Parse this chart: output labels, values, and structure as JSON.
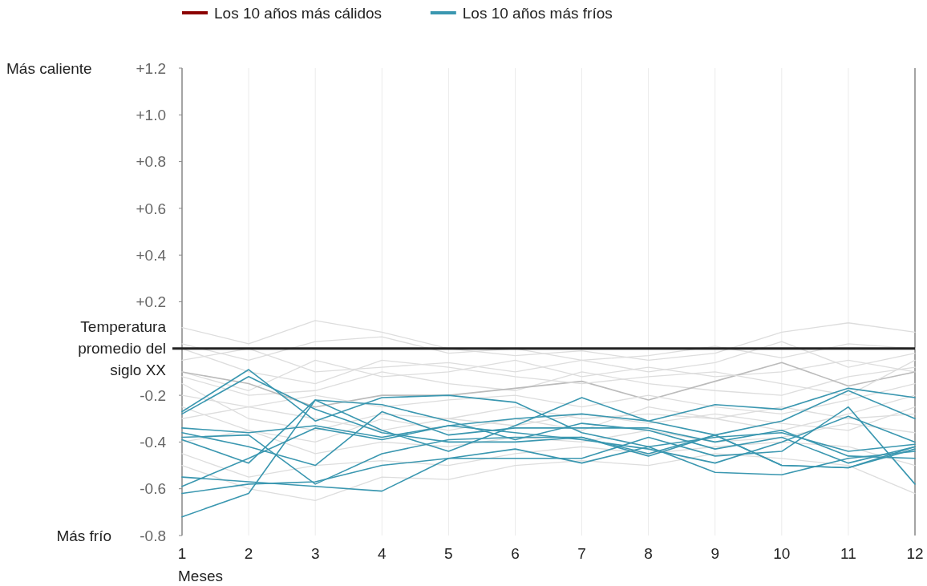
{
  "chart_data": {
    "type": "line",
    "xlabel": "Meses",
    "x": [
      1,
      2,
      3,
      4,
      5,
      6,
      7,
      8,
      9,
      10,
      11,
      12
    ],
    "xlim": [
      1,
      12
    ],
    "xticks": [
      1,
      2,
      3,
      4,
      5,
      6,
      7,
      8,
      9,
      10,
      11,
      12
    ],
    "ylim": [
      -0.8,
      1.2
    ],
    "yticks": [
      {
        "value": -0.8,
        "label": "-0.8"
      },
      {
        "value": -0.6,
        "label": "-0.6"
      },
      {
        "value": -0.4,
        "label": "-0.4"
      },
      {
        "value": -0.2,
        "label": "-0.2"
      },
      {
        "value": 0,
        "label": null
      },
      {
        "value": 0.2,
        "label": "+0.2"
      },
      {
        "value": 0.4,
        "label": "+0.4"
      },
      {
        "value": 0.6,
        "label": "+0.6"
      },
      {
        "value": 0.8,
        "label": "+0.8"
      },
      {
        "value": 1.0,
        "label": "+1.0"
      },
      {
        "value": 1.2,
        "label": "+1.2"
      }
    ],
    "grid": "x",
    "legend": "top",
    "marker": "none",
    "line_style": "solid",
    "ref_lines": [
      {
        "axis": "y",
        "value": 0,
        "label": "Temperatura promedio del siglo XX",
        "color": "#222222"
      }
    ],
    "annotations": [
      "Más caliente",
      "Más frío"
    ],
    "series": [
      {
        "color": "#dddddd",
        "values": [
          0.09,
          0.02,
          0.12,
          0.07,
          0.0,
          -0.03,
          -0.01,
          -0.05,
          -0.02,
          0.07,
          0.11,
          0.07
        ]
      },
      {
        "color": "#dddddd",
        "values": [
          0.02,
          -0.05,
          0.03,
          0.05,
          -0.02,
          0.0,
          -0.05,
          -0.03,
          0.01,
          -0.04,
          0.02,
          0.0
        ]
      },
      {
        "color": "#dddddd",
        "values": [
          -0.05,
          0.0,
          -0.1,
          -0.08,
          -0.06,
          -0.1,
          -0.05,
          -0.1,
          -0.06,
          0.03,
          -0.08,
          -0.02
        ]
      },
      {
        "color": "#dddddd",
        "values": [
          -0.1,
          -0.18,
          -0.05,
          -0.12,
          -0.1,
          -0.05,
          -0.12,
          -0.08,
          -0.12,
          -0.1,
          -0.05,
          -0.1
        ]
      },
      {
        "color": "#dddddd",
        "values": [
          -0.12,
          -0.2,
          -0.18,
          -0.1,
          -0.15,
          -0.18,
          -0.1,
          -0.15,
          -0.18,
          -0.2,
          -0.12,
          -0.08
        ]
      },
      {
        "color": "#bbbbbb",
        "values": [
          -0.1,
          -0.15,
          -0.25,
          -0.2,
          -0.2,
          -0.17,
          -0.14,
          -0.22,
          -0.14,
          -0.06,
          -0.16,
          -0.1
        ]
      },
      {
        "color": "#dddddd",
        "values": [
          -0.2,
          -0.25,
          -0.2,
          -0.25,
          -0.22,
          -0.2,
          -0.25,
          -0.2,
          -0.25,
          -0.28,
          -0.22,
          -0.15
        ]
      },
      {
        "color": "#dddddd",
        "values": [
          -0.15,
          -0.3,
          -0.35,
          -0.28,
          -0.3,
          -0.25,
          -0.3,
          -0.28,
          -0.3,
          -0.25,
          -0.3,
          -0.28
        ]
      },
      {
        "color": "#dddddd",
        "values": [
          -0.3,
          -0.25,
          -0.3,
          -0.35,
          -0.3,
          -0.33,
          -0.28,
          -0.32,
          -0.28,
          -0.32,
          -0.35,
          -0.25
        ]
      },
      {
        "color": "#dddddd",
        "values": [
          -0.4,
          -0.35,
          -0.45,
          -0.4,
          -0.42,
          -0.38,
          -0.4,
          -0.35,
          -0.4,
          -0.38,
          -0.32,
          -0.36
        ]
      },
      {
        "color": "#dddddd",
        "values": [
          -0.45,
          -0.55,
          -0.5,
          -0.48,
          -0.5,
          -0.45,
          -0.42,
          -0.45,
          -0.42,
          -0.4,
          -0.42,
          -0.5
        ]
      },
      {
        "color": "#dddddd",
        "values": [
          -0.5,
          -0.6,
          -0.65,
          -0.55,
          -0.56,
          -0.5,
          -0.48,
          -0.5,
          -0.45,
          -0.47,
          -0.5,
          -0.62
        ]
      },
      {
        "color": "#dddddd",
        "values": [
          -0.25,
          -0.35,
          -0.4,
          -0.3,
          -0.35,
          -0.3,
          -0.35,
          -0.25,
          -0.3,
          -0.35,
          -0.28,
          -0.2
        ]
      },
      {
        "color": "#dddddd",
        "values": [
          0.0,
          -0.1,
          -0.15,
          -0.05,
          -0.08,
          -0.12,
          -0.15,
          -0.12,
          -0.1,
          -0.15,
          -0.2,
          -0.05
        ]
      },
      {
        "name": "Los 10 años más cálidos",
        "color": "#8b0000",
        "values": [
          null,
          null,
          null,
          null,
          null,
          null,
          null,
          null,
          null,
          null,
          null,
          null
        ]
      },
      {
        "name": "Los 10 años más fríos",
        "color": "#3a97b0",
        "values": [
          -0.27,
          -0.09,
          -0.31,
          -0.21,
          -0.2,
          -0.23,
          -0.36,
          -0.42,
          -0.38,
          -0.36,
          -0.44,
          -0.41
        ]
      },
      {
        "color": "#3a97b0",
        "values": [
          -0.28,
          -0.12,
          -0.26,
          -0.36,
          -0.4,
          -0.4,
          -0.38,
          -0.46,
          -0.37,
          -0.5,
          -0.51,
          -0.43
        ]
      },
      {
        "color": "#3a97b0",
        "values": [
          -0.34,
          -0.36,
          -0.33,
          -0.38,
          -0.33,
          -0.3,
          -0.28,
          -0.31,
          -0.24,
          -0.26,
          -0.17,
          -0.21
        ]
      },
      {
        "color": "#3a97b0",
        "values": [
          -0.38,
          -0.37,
          -0.58,
          -0.45,
          -0.39,
          -0.38,
          -0.38,
          -0.45,
          -0.37,
          -0.5,
          -0.51,
          -0.42
        ]
      },
      {
        "color": "#3a97b0",
        "values": [
          -0.39,
          -0.49,
          -0.22,
          -0.35,
          -0.44,
          -0.33,
          -0.21,
          -0.31,
          -0.37,
          -0.31,
          -0.18,
          -0.3
        ]
      },
      {
        "color": "#3a97b0",
        "values": [
          -0.36,
          -0.42,
          -0.5,
          -0.27,
          -0.37,
          -0.34,
          -0.34,
          -0.34,
          -0.4,
          -0.35,
          -0.46,
          -0.47
        ]
      },
      {
        "color": "#3a97b0",
        "values": [
          -0.55,
          -0.57,
          -0.59,
          -0.61,
          -0.47,
          -0.47,
          -0.47,
          -0.38,
          -0.46,
          -0.44,
          -0.25,
          -0.58
        ]
      },
      {
        "color": "#3a97b0",
        "values": [
          -0.59,
          -0.47,
          -0.34,
          -0.39,
          -0.33,
          -0.36,
          -0.39,
          -0.43,
          -0.49,
          -0.4,
          -0.29,
          -0.4
        ]
      },
      {
        "color": "#3a97b0",
        "values": [
          -0.62,
          -0.58,
          -0.57,
          -0.5,
          -0.47,
          -0.43,
          -0.49,
          -0.42,
          -0.53,
          -0.54,
          -0.47,
          -0.44
        ]
      },
      {
        "color": "#3a97b0",
        "values": [
          -0.72,
          -0.62,
          -0.22,
          -0.24,
          -0.31,
          -0.39,
          -0.32,
          -0.35,
          -0.43,
          -0.38,
          -0.49,
          -0.42
        ]
      }
    ]
  }
}
